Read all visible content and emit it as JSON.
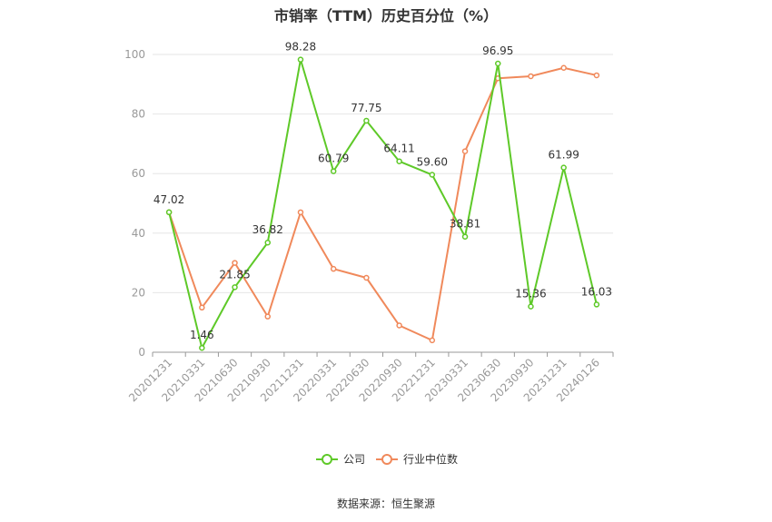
{
  "chart_data": {
    "type": "line",
    "title": "市销率（TTM）历史百分位（%）",
    "source": "数据来源：恒生聚源",
    "categories": [
      "20201231",
      "20210331",
      "20210630",
      "20210930",
      "20211231",
      "20220331",
      "20220630",
      "20220930",
      "20221231",
      "20230331",
      "20230630",
      "20230930",
      "20231231",
      "20240126"
    ],
    "ylim": [
      0,
      100
    ],
    "yticks": [
      0,
      20,
      40,
      60,
      80,
      100
    ],
    "grid": true,
    "legend_position": "bottom",
    "series": [
      {
        "name": "公司",
        "color": "#5ec928",
        "values": [
          47.02,
          1.46,
          21.85,
          36.82,
          98.28,
          60.79,
          77.75,
          64.11,
          59.6,
          38.81,
          96.95,
          15.36,
          61.99,
          16.03
        ],
        "labels": [
          "47.02",
          "1.46",
          "21.85",
          "36.82",
          "98.28",
          "60.79",
          "77.75",
          "64.11",
          "59.60",
          "38.81",
          "96.95",
          "15.36",
          "61.99",
          "16.03"
        ]
      },
      {
        "name": "行业中位数",
        "color": "#f0895b",
        "values": [
          47.0,
          15.0,
          30.0,
          12.0,
          47.0,
          28.0,
          25.0,
          9.0,
          4.0,
          67.5,
          92.0,
          92.7,
          95.5,
          93.0
        ]
      }
    ]
  }
}
